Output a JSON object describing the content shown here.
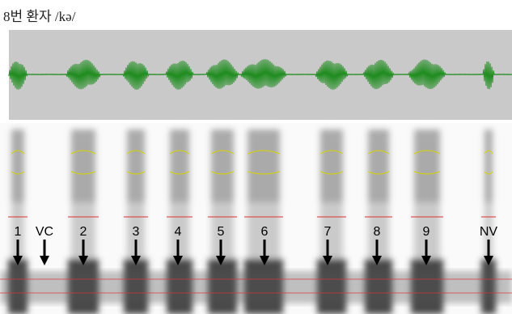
{
  "header": {
    "title": "8번 환자 /kə/"
  },
  "markers": [
    "1",
    "VC",
    "2",
    "3",
    "4",
    "5",
    "6",
    "7",
    "8",
    "9",
    "NV"
  ]
}
